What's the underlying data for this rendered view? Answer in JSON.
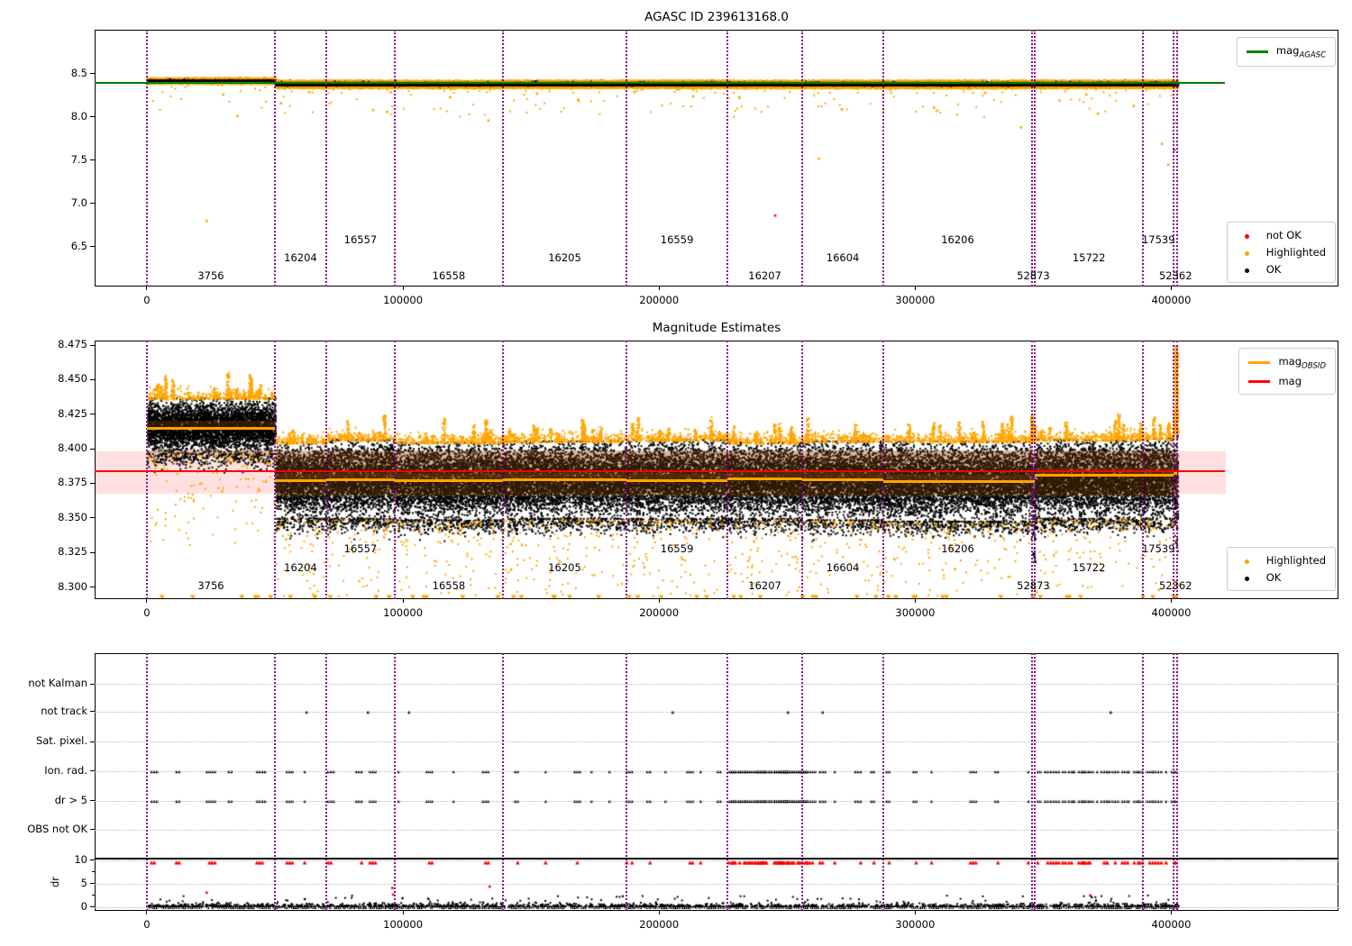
{
  "colors": {
    "ok": "#000000",
    "highlighted": "#ffa500",
    "not_ok": "#ff0000",
    "mag_agasc_line": "#008000",
    "mag_obsid_line": "#ffa500",
    "mag_line": "#ff0000",
    "mag_err_band": "rgba(255,0,0,0.12)",
    "obsid_boundary": "#800080",
    "band_tint": "rgba(150,75,0,0.30)"
  },
  "chart_data": [
    {
      "type": "scatter",
      "title": "AGASC ID 239613168.0",
      "xlim": [
        -20400,
        465300
      ],
      "ylim": [
        6.04,
        9.01
      ],
      "x_ticks": {
        "values": [
          0,
          100000,
          200000,
          300000,
          400000
        ],
        "labels": [
          "0",
          "100000",
          "200000",
          "300000",
          "400000"
        ]
      },
      "y_ticks": {
        "values": [
          8.5,
          8.0,
          7.5,
          7.0,
          6.5
        ],
        "labels": [
          "8.5",
          "8.0",
          "7.5",
          "7.0",
          "6.5"
        ]
      },
      "mag_agasc": 8.4,
      "ref_line_x": [
        -20400,
        421000
      ],
      "obsid_boundaries": [
        0,
        50000,
        70000,
        96800,
        139000,
        187300,
        226700,
        255900,
        287600,
        345600,
        346700,
        389000,
        401000,
        402400
      ],
      "obsid_labels": [
        "3756",
        "16204",
        "16557",
        "16558",
        "16205",
        "16559",
        "16207",
        "16604",
        "16206",
        "52873",
        "15722",
        "17539",
        "52362"
      ],
      "segments": [
        {
          "x0": 0,
          "x1": 50000,
          "band": [
            8.405,
            8.455
          ]
        },
        {
          "x0": 50000,
          "x1": 70000,
          "band": [
            8.355,
            8.425
          ]
        },
        {
          "x0": 70000,
          "x1": 96800,
          "band": [
            8.355,
            8.427
          ]
        },
        {
          "x0": 96800,
          "x1": 139000,
          "band": [
            8.353,
            8.424
          ]
        },
        {
          "x0": 139000,
          "x1": 187300,
          "band": [
            8.355,
            8.426
          ]
        },
        {
          "x0": 187300,
          "x1": 226700,
          "band": [
            8.355,
            8.427
          ]
        },
        {
          "x0": 226700,
          "x1": 255900,
          "band": [
            8.354,
            8.425
          ]
        },
        {
          "x0": 255900,
          "x1": 287600,
          "band": [
            8.353,
            8.426
          ]
        },
        {
          "x0": 287600,
          "x1": 345600,
          "band": [
            8.352,
            8.426
          ]
        },
        {
          "x0": 345600,
          "x1": 346700,
          "band": [
            8.35,
            8.42
          ]
        },
        {
          "x0": 346700,
          "x1": 389000,
          "band": [
            8.355,
            8.427
          ]
        },
        {
          "x0": 389000,
          "x1": 401000,
          "band": [
            8.355,
            8.428
          ]
        },
        {
          "x0": 401000,
          "x1": 402400,
          "band": [
            8.35,
            8.43
          ]
        }
      ],
      "outliers_orange": [
        [
          23000,
          6.81
        ],
        [
          29500,
          8.27
        ],
        [
          35000,
          8.02
        ],
        [
          52000,
          8.17
        ],
        [
          63000,
          8.3
        ],
        [
          88000,
          8.09
        ],
        [
          93500,
          8.07
        ],
        [
          118000,
          8.24
        ],
        [
          133000,
          7.97
        ],
        [
          152000,
          8.28
        ],
        [
          168000,
          8.21
        ],
        [
          190000,
          8.3
        ],
        [
          213000,
          8.25
        ],
        [
          231000,
          8.23
        ],
        [
          262000,
          7.53
        ],
        [
          271000,
          8.1
        ],
        [
          287000,
          8.26
        ],
        [
          307000,
          8.12
        ],
        [
          327000,
          8.29
        ],
        [
          341000,
          7.89
        ],
        [
          356000,
          8.2
        ],
        [
          366500,
          8.27
        ],
        [
          371000,
          8.05
        ],
        [
          385000,
          8.14
        ],
        [
          396000,
          7.7
        ],
        [
          398500,
          7.46
        ],
        [
          400700,
          8.19
        ],
        [
          401300,
          7.94
        ]
      ],
      "outliers_red": [
        [
          245000,
          6.87
        ],
        [
          400800,
          7.63
        ]
      ],
      "legend_lines": [
        {
          "text": "mag",
          "sub": "AGASC",
          "color": "#008000"
        }
      ],
      "legend_points": [
        {
          "text": "not OK",
          "color": "#ff0000"
        },
        {
          "text": "Highlighted",
          "color": "#ffa500"
        },
        {
          "text": "OK",
          "color": "#000000"
        }
      ]
    },
    {
      "type": "scatter",
      "title": "Magnitude Estimates",
      "xlim": [
        -20400,
        465300
      ],
      "ylim": [
        8.2912,
        8.4783
      ],
      "x_ticks": {
        "values": [
          0,
          100000,
          200000,
          300000,
          400000
        ],
        "labels": [
          "0",
          "100000",
          "200000",
          "300000",
          "400000"
        ]
      },
      "y_ticks": {
        "values": [
          8.475,
          8.45,
          8.425,
          8.4,
          8.375,
          8.35,
          8.325,
          8.3
        ],
        "labels": [
          "8.475",
          "8.450",
          "8.425",
          "8.400",
          "8.375",
          "8.350",
          "8.325",
          "8.300"
        ]
      },
      "mag": 8.384,
      "mag_err": [
        8.368,
        8.399
      ],
      "ref_line_x": [
        -20400,
        421000
      ],
      "clip_y": 8.2935,
      "obsid_boundaries": [
        0,
        50000,
        70000,
        96800,
        139000,
        187300,
        226700,
        255900,
        287600,
        345600,
        346700,
        389000,
        401000,
        402400
      ],
      "obsid_labels": [
        "3756",
        "16204",
        "16557",
        "16558",
        "16205",
        "16559",
        "16207",
        "16604",
        "16206",
        "52873",
        "15722",
        "17539",
        "52362"
      ],
      "segments": [
        {
          "x0": 0,
          "x1": 50000,
          "band": [
            8.397,
            8.437
          ],
          "obsid_mag": 8.415
        },
        {
          "x0": 50000,
          "x1": 70000,
          "band": [
            8.35,
            8.405
          ],
          "obsid_mag": 8.377
        },
        {
          "x0": 70000,
          "x1": 96800,
          "band": [
            8.35,
            8.407
          ],
          "obsid_mag": 8.3775
        },
        {
          "x0": 96800,
          "x1": 139000,
          "band": [
            8.349,
            8.405
          ],
          "obsid_mag": 8.377
        },
        {
          "x0": 139000,
          "x1": 187300,
          "band": [
            8.35,
            8.406
          ],
          "obsid_mag": 8.3775
        },
        {
          "x0": 187300,
          "x1": 226700,
          "band": [
            8.35,
            8.407
          ],
          "obsid_mag": 8.377
        },
        {
          "x0": 226700,
          "x1": 255900,
          "band": [
            8.35,
            8.405
          ],
          "obsid_mag": 8.378
        },
        {
          "x0": 255900,
          "x1": 287600,
          "band": [
            8.349,
            8.406
          ],
          "obsid_mag": 8.3775
        },
        {
          "x0": 287600,
          "x1": 345600,
          "band": [
            8.348,
            8.406
          ],
          "obsid_mag": 8.376
        },
        {
          "x0": 345600,
          "x1": 346700,
          "band": [
            8.325,
            8.405
          ],
          "obsid_mag": 8.376
        },
        {
          "x0": 346700,
          "x1": 389000,
          "band": [
            8.35,
            8.407
          ],
          "obsid_mag": 8.381
        },
        {
          "x0": 389000,
          "x1": 401000,
          "band": [
            8.35,
            8.408
          ],
          "obsid_mag": 8.381
        },
        {
          "x0": 401000,
          "x1": 402400,
          "band": [
            8.335,
            8.412
          ],
          "obsid_mag": 8.382,
          "top_spike": true
        }
      ],
      "legend_lines": [
        {
          "text": "mag",
          "sub": "OBSID",
          "color": "#ffa500"
        },
        {
          "text": "mag",
          "sub": "",
          "color": "#ff0000"
        }
      ],
      "legend_points": [
        {
          "text": "Highlighted",
          "color": "#ffa500"
        },
        {
          "text": "OK",
          "color": "#000000"
        }
      ]
    },
    {
      "type": "flags",
      "rows": [
        "not Kalman",
        "not track",
        "Sat. pixel.",
        "Ion. rad.",
        "dr > 5",
        "OBS not OK"
      ],
      "dr_label": "dr",
      "dr_ticks": {
        "values": [
          10,
          5,
          0
        ],
        "labels": [
          "10",
          "5",
          "0"
        ]
      },
      "dr_clip": 10,
      "xlim": [
        -20400,
        465300
      ],
      "x_ticks": {
        "values": [
          0,
          100000,
          200000,
          300000,
          400000
        ],
        "labels": [
          "0",
          "100000",
          "200000",
          "300000",
          "400000"
        ]
      },
      "obsid_boundaries": [
        0,
        50000,
        70000,
        96800,
        139000,
        187300,
        226700,
        255900,
        287600,
        345600,
        346700,
        389000,
        401000,
        402400
      ],
      "data_range": [
        0,
        402400
      ],
      "not_track_x": [
        62000,
        86000,
        102000,
        205000,
        250000,
        263500,
        376000
      ],
      "flag_clusters": [
        {
          "x0": 1500,
          "x1": 226000,
          "gap": 8800
        },
        {
          "x0": 227000,
          "x1": 257500,
          "gap": 850
        },
        {
          "x0": 258500,
          "x1": 286500,
          "gap": 6200
        },
        {
          "x0": 288500,
          "x1": 344500,
          "gap": 10500
        },
        {
          "x0": 347500,
          "x1": 401500,
          "gap": 2500
        }
      ],
      "dr_red_extra": [
        [
          23000,
          3.3
        ],
        [
          95500,
          4.3
        ],
        [
          95800,
          2.9
        ],
        [
          133500,
          4.6
        ],
        [
          368000,
          2.7
        ]
      ]
    }
  ]
}
